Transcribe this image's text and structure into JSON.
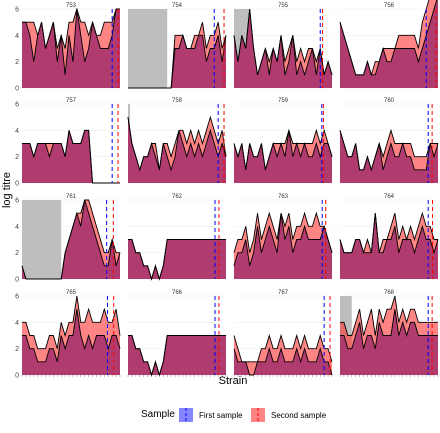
{
  "chart_data": {
    "type": "area",
    "layout": "facet grid, 4 rows x 4 columns",
    "xlabel": "Strain",
    "ylabel": "log titre",
    "ylim": [
      0,
      6
    ],
    "yticks": [
      0,
      2,
      4,
      6
    ],
    "n_strains": 26,
    "grid": true,
    "legend": {
      "title": "Sample",
      "position": "bottom",
      "entries": [
        {
          "name": "First sample",
          "color": "#0000ff",
          "fill": "#3333ff"
        },
        {
          "name": "Second sample",
          "color": "#ff0000",
          "fill": "#ff3333"
        }
      ]
    },
    "colors": {
      "first_line": "#0000ff",
      "second_line": "#ff0000",
      "first_fill": "#3333ff",
      "second_fill": "#ff3333",
      "overlap_fill": "#b03b6e",
      "shade": "#bebebe",
      "strip": "#ffffff",
      "panel_bg": "#ffffff",
      "grid": "#ebebeb"
    },
    "panels": [
      {
        "id": "753",
        "first": [
          5,
          5,
          4,
          2,
          4,
          5,
          3,
          4,
          5,
          2,
          4,
          1,
          4,
          2,
          6,
          4,
          2,
          3,
          5,
          4,
          3,
          3,
          3,
          4,
          6,
          6
        ],
        "second": [
          5,
          5,
          5,
          5,
          4,
          5,
          3,
          4,
          5,
          3,
          4,
          3,
          5,
          5,
          6,
          5,
          5,
          4,
          5,
          4,
          4,
          5,
          5,
          5,
          6,
          6
        ],
        "vline_first": 23,
        "vline_second": 24.5
      },
      {
        "id": "754",
        "shade": [
          0,
          10
        ],
        "first": [
          0,
          0,
          0,
          0,
          0,
          0,
          0,
          0,
          0,
          0,
          0,
          0,
          3,
          3,
          4,
          3,
          3,
          3,
          4,
          4,
          2,
          3,
          3,
          4,
          2,
          4
        ],
        "second": [
          0,
          0,
          0,
          0,
          0,
          0,
          0,
          0,
          0,
          0,
          0,
          0,
          4,
          4,
          4,
          3,
          3,
          4,
          4,
          5,
          3,
          4,
          4,
          5,
          3,
          4
        ],
        "vline_first": 22,
        "vline_second": 24.5
      },
      {
        "id": "755",
        "shade": [
          0,
          4
        ],
        "first": [
          4,
          2,
          4,
          3,
          6,
          3,
          1,
          2,
          3,
          1,
          3,
          2,
          4,
          1,
          2,
          4,
          1,
          2,
          1,
          2,
          3,
          1,
          3,
          1,
          2,
          1
        ],
        "second": [
          4,
          2,
          4,
          3,
          6,
          3,
          1,
          2,
          3,
          2,
          3,
          2,
          4,
          2,
          3,
          4,
          2,
          3,
          2,
          3,
          3,
          2,
          3,
          1,
          2,
          1
        ],
        "vline_first": 22,
        "vline_second": 22.6
      },
      {
        "id": "756",
        "first": [
          5,
          4,
          3,
          2,
          1,
          1,
          1,
          2,
          1,
          1,
          2,
          3,
          2,
          2,
          3,
          3,
          3,
          3,
          3,
          3,
          2,
          3,
          4,
          5,
          6,
          7
        ],
        "second": [
          5,
          4,
          3,
          2,
          1,
          1,
          1,
          2,
          1,
          2,
          2,
          3,
          3,
          3,
          3,
          4,
          4,
          4,
          4,
          4,
          3,
          5,
          6,
          7,
          7,
          7
        ],
        "vline_first": 22,
        "vline_second": 24.5
      },
      {
        "id": "757",
        "first": [
          3,
          3,
          3,
          2,
          3,
          3,
          3,
          2,
          3,
          3,
          3,
          2,
          4,
          3,
          3,
          3,
          4,
          4,
          0,
          0,
          0,
          0,
          0,
          0,
          0,
          0
        ],
        "second": [
          3,
          3,
          3,
          2,
          3,
          3,
          3,
          3,
          3,
          3,
          3,
          2,
          4,
          3,
          3,
          3,
          4,
          4,
          0,
          0,
          0,
          0,
          0,
          0,
          0,
          0
        ],
        "vline_first": 23,
        "vline_second": 24.5
      },
      {
        "id": "758",
        "shade": [
          0,
          0.5
        ],
        "first": [
          5,
          3,
          2,
          1,
          2,
          2,
          3,
          2,
          1,
          3,
          2,
          1,
          2,
          4,
          3,
          2,
          3,
          2,
          3,
          2,
          3,
          4,
          3,
          2,
          3,
          2
        ],
        "second": [
          5,
          3,
          2,
          1,
          2,
          2,
          3,
          3,
          1,
          3,
          3,
          2,
          3,
          4,
          4,
          3,
          4,
          3,
          4,
          3,
          4,
          5,
          4,
          3,
          4,
          2
        ],
        "vline_first": 23,
        "vline_second": 24.5
      },
      {
        "id": "759",
        "first": [
          3,
          2,
          3,
          1,
          3,
          2,
          2,
          3,
          1,
          2,
          3,
          2,
          3,
          2,
          4,
          2,
          3,
          2,
          3,
          2,
          2,
          3,
          2,
          3,
          3,
          2
        ],
        "second": [
          3,
          2,
          3,
          1,
          3,
          2,
          2,
          3,
          1,
          2,
          3,
          3,
          3,
          3,
          4,
          3,
          3,
          3,
          3,
          3,
          3,
          4,
          3,
          4,
          3,
          2
        ],
        "vline_first": 22.4,
        "vline_second": 22.8
      },
      {
        "id": "760",
        "first": [
          4,
          3,
          2,
          2,
          3,
          1,
          1,
          2,
          1,
          2,
          3,
          1,
          2,
          3,
          2,
          2,
          3,
          2,
          2,
          1,
          1,
          1,
          1,
          3,
          2,
          3
        ],
        "second": [
          4,
          3,
          2,
          2,
          3,
          1,
          1,
          2,
          1,
          2,
          3,
          2,
          3,
          4,
          3,
          3,
          3,
          3,
          3,
          2,
          2,
          2,
          2,
          3,
          3,
          3
        ],
        "vline_first": 22.5,
        "vline_second": 23.5
      },
      {
        "id": "761",
        "shade": [
          0,
          10
        ],
        "first": [
          1,
          0,
          0,
          0,
          0,
          0,
          0,
          0,
          0,
          0,
          0,
          2,
          3,
          4,
          5,
          4,
          6,
          5,
          4,
          3,
          2,
          1,
          1,
          3,
          1,
          2
        ],
        "second": [
          1,
          0,
          0,
          0,
          0,
          0,
          0,
          0,
          0,
          0,
          0,
          2,
          3,
          4,
          5,
          5,
          6,
          6,
          5,
          4,
          3,
          2,
          2,
          3,
          2,
          2
        ],
        "vline_first": 21.6,
        "vline_second": 23.3
      },
      {
        "id": "762",
        "first": [
          3,
          3,
          2,
          2,
          1,
          1,
          0,
          1,
          0,
          1,
          3,
          3,
          3,
          3,
          3,
          3,
          3,
          3,
          3,
          3,
          3,
          3,
          3,
          3,
          3,
          3
        ],
        "second": [
          3,
          3,
          2,
          2,
          1,
          1,
          0,
          1,
          0,
          1,
          3,
          3,
          3,
          3,
          3,
          3,
          3,
          3,
          3,
          3,
          3,
          3,
          3,
          3,
          3,
          3
        ],
        "vline_first": 22.2,
        "vline_second": 23.2
      },
      {
        "id": "763",
        "first": [
          1,
          2,
          2,
          3,
          1,
          2,
          4,
          2,
          3,
          4,
          3,
          2,
          5,
          3,
          4,
          2,
          3,
          3,
          4,
          3,
          3,
          3,
          3,
          4,
          3,
          2
        ],
        "second": [
          2,
          3,
          3,
          4,
          2,
          3,
          5,
          3,
          4,
          5,
          4,
          3,
          5,
          4,
          5,
          3,
          4,
          4,
          5,
          4,
          4,
          5,
          4,
          4,
          3,
          2
        ],
        "vline_first": 22.5,
        "vline_second": 23.4
      },
      {
        "id": "764",
        "first": [
          3,
          2,
          2,
          2,
          3,
          3,
          2,
          2,
          2,
          5,
          2,
          2,
          3,
          3,
          4,
          2,
          3,
          3,
          3,
          2,
          3,
          4,
          3,
          3,
          2,
          3
        ],
        "second": [
          3,
          2,
          2,
          2,
          3,
          3,
          2,
          3,
          2,
          5,
          2,
          3,
          3,
          4,
          5,
          3,
          4,
          3,
          4,
          3,
          4,
          5,
          4,
          4,
          3,
          3
        ],
        "vline_first": 22.5,
        "vline_second": 23.6
      },
      {
        "id": "765",
        "first": [
          3,
          3,
          2,
          2,
          1,
          1,
          1,
          2,
          2,
          1,
          3,
          2,
          3,
          3,
          5,
          3,
          2,
          3,
          2,
          3,
          3,
          3,
          2,
          3,
          3,
          2
        ],
        "second": [
          4,
          4,
          3,
          3,
          2,
          2,
          2,
          3,
          3,
          2,
          4,
          3,
          4,
          4,
          6,
          4,
          4,
          5,
          4,
          4,
          4,
          5,
          4,
          4,
          5,
          3
        ],
        "vline_first": 21.8,
        "vline_second": 23.4
      },
      {
        "id": "766",
        "first": [
          3,
          3,
          2,
          2,
          1,
          1,
          0,
          1,
          0,
          1,
          3,
          3,
          3,
          3,
          3,
          3,
          3,
          3,
          3,
          3,
          3,
          3,
          3,
          3,
          3,
          3
        ],
        "second": [
          3,
          3,
          2,
          2,
          1,
          1,
          0,
          1,
          0,
          1,
          3,
          3,
          3,
          3,
          3,
          3,
          3,
          3,
          3,
          3,
          3,
          3,
          3,
          3,
          3,
          3
        ],
        "vline_first": 22.2,
        "vline_second": 23.2
      },
      {
        "id": "767",
        "first": [
          2,
          1,
          1,
          1,
          0,
          0,
          1,
          1,
          1,
          2,
          1,
          1,
          2,
          1,
          1,
          1,
          2,
          1,
          2,
          1,
          1,
          1,
          2,
          1,
          1,
          0
        ],
        "second": [
          3,
          2,
          1,
          1,
          1,
          1,
          1,
          2,
          2,
          3,
          2,
          2,
          3,
          2,
          2,
          2,
          3,
          2,
          3,
          2,
          2,
          2,
          3,
          2,
          2,
          1
        ],
        "vline_first": 23,
        "vline_second": 24.5
      },
      {
        "id": "768",
        "shade": [
          0,
          3
        ],
        "first": [
          3,
          3,
          2,
          2,
          3,
          4,
          2,
          3,
          3,
          2,
          4,
          3,
          3,
          3,
          5,
          3,
          4,
          3,
          4,
          4,
          3,
          3,
          3,
          3,
          3,
          3
        ],
        "second": [
          4,
          4,
          3,
          3,
          4,
          5,
          3,
          4,
          5,
          3,
          5,
          4,
          5,
          5,
          6,
          4,
          5,
          4,
          5,
          5,
          4,
          4,
          4,
          4,
          4,
          4
        ],
        "vline_first": 22.5,
        "vline_second": 23.5
      }
    ]
  }
}
